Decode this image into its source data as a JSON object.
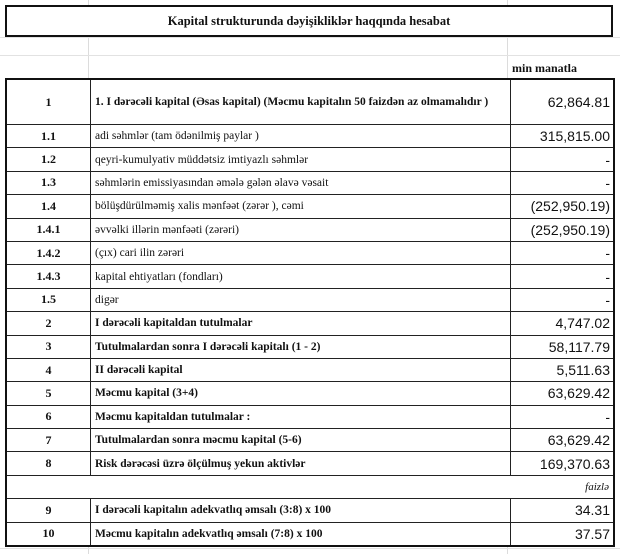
{
  "title": "Kapital strukturunda dəyişikliklər haqqında hesabat",
  "unit_label": "min manatla",
  "percent_label": "faizlə",
  "rows": [
    {
      "num": "1",
      "desc": "1. I dərəcəli kapital (Əsas kapital) (Məcmu kapitalın 50 faizdən  az olmamalıdır )",
      "value": "62,864.81",
      "bold": true
    },
    {
      "num": "1.1",
      "desc": "adi səhmlər (tam ödənilmiş paylar )",
      "value": "315,815.00",
      "bold": false
    },
    {
      "num": "1.2",
      "desc": "qeyri-kumulyativ müddətsiz imtiyazlı səhmlər",
      "value": "-",
      "bold": false
    },
    {
      "num": "1.3",
      "desc": "səhmlərin emissiyasından əmələ gələn  əlavə vəsait",
      "value": "-",
      "bold": false
    },
    {
      "num": "1.4",
      "desc": "bölüşdürülməmiş xalis mənfəət (zərər ), cəmi",
      "value": "(252,950.19)",
      "bold": false
    },
    {
      "num": "1.4.1",
      "desc": "əvvəlki illərin mənfəəti (zərəri)",
      "value": "(252,950.19)",
      "bold": false
    },
    {
      "num": "1.4.2",
      "desc": "(çıx) cari ilin zərəri",
      "value": "-",
      "bold": false
    },
    {
      "num": "1.4.3",
      "desc": "kapital ehtiyatları (fondları)",
      "value": "-",
      "bold": false
    },
    {
      "num": "1.5",
      "desc": "digər",
      "value": "-",
      "bold": false
    },
    {
      "num": "2",
      "desc": "I dərəcəli kapitaldan  tutulmalar",
      "value": "4,747.02",
      "bold": true
    },
    {
      "num": "3",
      "desc": "Tutulmalardan  sonra I dərəcəli kapitalı (1 - 2)",
      "value": "58,117.79",
      "bold": true
    },
    {
      "num": "4",
      "desc": "II dərəcəli  kapital",
      "value": "5,511.63",
      "bold": true
    },
    {
      "num": "5",
      "desc": "Məcmu kapital (3+4)",
      "value": "63,629.42",
      "bold": true
    },
    {
      "num": "6",
      "desc": "Məcmu kapitaldan tutulmalar :",
      "value": "-",
      "bold": true
    },
    {
      "num": "7",
      "desc": "Tutulmalardan sonra məcmu kapital (5-6)",
      "value": "63,629.42",
      "bold": true
    },
    {
      "num": "8",
      "desc": "Risk dərəcəsi üzrə ölçülmuş  yekun aktivlər",
      "value": "169,370.63",
      "bold": true
    }
  ],
  "ratio_rows": [
    {
      "num": "9",
      "desc": "I dərəcəli  kapitalın  adekvatlıq əmsalı (3:8) x 100",
      "value": "34.31",
      "bold": true
    },
    {
      "num": "10",
      "desc": "Məcmu kapitalın  adekvatlıq  əmsalı (7:8) x 100",
      "value": "37.57",
      "bold": true
    }
  ]
}
